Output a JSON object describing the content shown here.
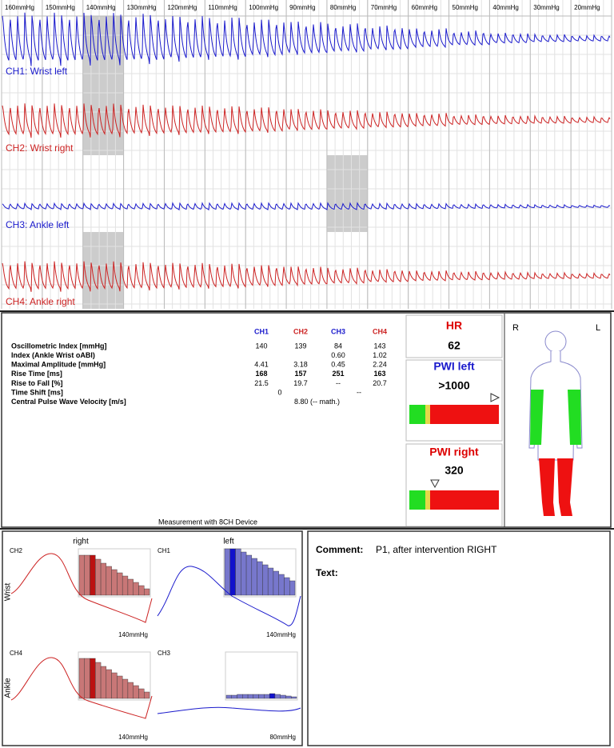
{
  "pressures": [
    "160mmHg",
    "150mmHg",
    "140mmHg",
    "130mmHg",
    "120mmHg",
    "110mmHg",
    "100mmHg",
    "90mmHg",
    "80mmHg",
    "70mmHg",
    "60mmHg",
    "50mmHg",
    "40mmHg",
    "30mmHg",
    "20mmHg"
  ],
  "channels": [
    "CH1: Wrist left",
    "CH2: Wrist right",
    "CH3: Ankle left",
    "CH4: Ankle right"
  ],
  "table": {
    "headers": [
      "CH1",
      "CH2",
      "CH3",
      "CH4"
    ],
    "rows": [
      {
        "label": "Oscillometric Index [mmHg]",
        "cells": [
          "140",
          "139",
          "84",
          "143"
        ]
      },
      {
        "label": "Index (Ankle Wrist oABI)",
        "cells": [
          null,
          null,
          "0.60",
          "1.02"
        ]
      },
      {
        "label": "Maximal Amplitude [mmHg]",
        "cells": [
          "4.41",
          "3.18",
          "0.45",
          "2.24"
        ]
      },
      {
        "label": "Rise Time [ms]",
        "cells": [
          "168",
          "157",
          "251",
          "163"
        ]
      },
      {
        "label": "Rise to Fall [%]",
        "cells": [
          "21.5",
          "19.7",
          "--",
          "20.7"
        ]
      },
      {
        "label": "Time Shift [ms]",
        "cells": [
          null,
          "0",
          null,
          "--"
        ]
      },
      {
        "label": "Central Pulse Wave Velocity [m/s]",
        "cells": [
          null,
          "8.80 (-- math.)",
          null,
          null
        ]
      }
    ],
    "footer": "Measurement with 8CH Device"
  },
  "hr": {
    "label": "HR",
    "value": "62"
  },
  "pwi_left": {
    "label": "PWI left",
    "value": ">1000"
  },
  "pwi_right": {
    "label": "PWI right",
    "value": "320"
  },
  "body": {
    "right": "R",
    "left": "L"
  },
  "curves": {
    "right": "right",
    "left": "left",
    "wrist": "Wrist",
    "ankle": "Ankle",
    "panels": [
      {
        "channel": "CH2",
        "pressure": "140mmHg"
      },
      {
        "channel": "CH1",
        "pressure": "140mmHg"
      },
      {
        "channel": "CH4",
        "pressure": "140mmHg"
      },
      {
        "channel": "CH3",
        "pressure": "80mmHg"
      }
    ]
  },
  "comment": {
    "label": "Comment:",
    "text": "P1,  after intervention RIGHT",
    "text_label": "Text:"
  }
}
